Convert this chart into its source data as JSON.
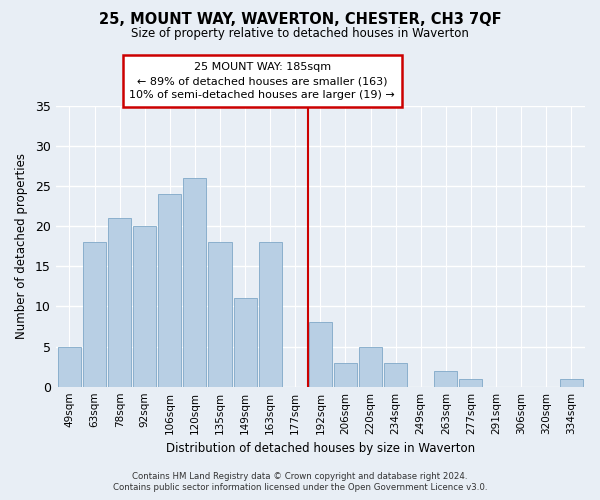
{
  "title": "25, MOUNT WAY, WAVERTON, CHESTER, CH3 7QF",
  "subtitle": "Size of property relative to detached houses in Waverton",
  "xlabel": "Distribution of detached houses by size in Waverton",
  "ylabel": "Number of detached properties",
  "bar_labels": [
    "49sqm",
    "63sqm",
    "78sqm",
    "92sqm",
    "106sqm",
    "120sqm",
    "135sqm",
    "149sqm",
    "163sqm",
    "177sqm",
    "192sqm",
    "206sqm",
    "220sqm",
    "234sqm",
    "249sqm",
    "263sqm",
    "277sqm",
    "291sqm",
    "306sqm",
    "320sqm",
    "334sqm"
  ],
  "bar_values": [
    5,
    18,
    21,
    20,
    24,
    26,
    18,
    11,
    18,
    0,
    8,
    3,
    5,
    3,
    0,
    2,
    1,
    0,
    0,
    0,
    1
  ],
  "bar_color": "#b8cfe4",
  "vline_x_index": 10,
  "vline_color": "#cc0000",
  "ylim": [
    0,
    35
  ],
  "yticks": [
    0,
    5,
    10,
    15,
    20,
    25,
    30,
    35
  ],
  "annotation_title": "25 MOUNT WAY: 185sqm",
  "annotation_line1": "← 89% of detached houses are smaller (163)",
  "annotation_line2": "10% of semi-detached houses are larger (19) →",
  "annotation_box_color": "#ffffff",
  "annotation_box_edge": "#cc0000",
  "footer_line1": "Contains HM Land Registry data © Crown copyright and database right 2024.",
  "footer_line2": "Contains public sector information licensed under the Open Government Licence v3.0.",
  "bg_color": "#e8eef5",
  "grid_color": "#ffffff"
}
